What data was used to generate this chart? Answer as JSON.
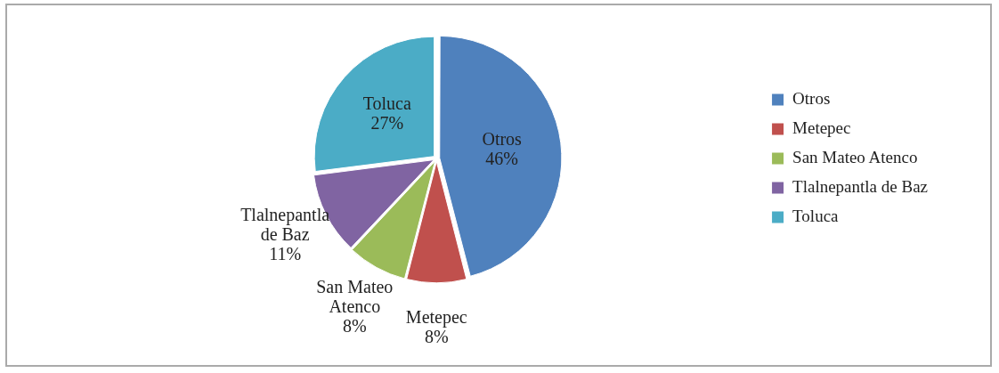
{
  "chart_data": {
    "type": "pie",
    "categories": [
      "Otros",
      "Metepec",
      "San Mateo Atenco",
      "Tlalnepantla de Baz",
      "Toluca"
    ],
    "values": [
      46,
      8,
      8,
      11,
      27
    ],
    "value_labels": [
      "46%",
      "8%",
      "8%",
      "11%",
      "27%"
    ],
    "colors": [
      "#4f81bd",
      "#c0504d",
      "#9bbb59",
      "#8064a2",
      "#4bacc6"
    ],
    "legend": "right"
  }
}
